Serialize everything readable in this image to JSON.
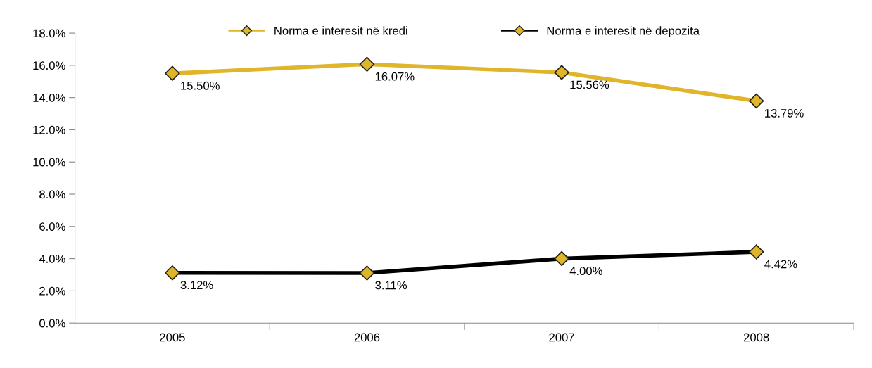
{
  "chart_data": {
    "type": "line",
    "categories": [
      "2005",
      "2006",
      "2007",
      "2008"
    ],
    "series": [
      {
        "name": "Norma e interesit në kredi",
        "color": "#e0b52a",
        "values": [
          15.5,
          16.07,
          15.56,
          13.79
        ],
        "value_labels": [
          "15.50%",
          "16.07%",
          "15.56%",
          "13.79%"
        ]
      },
      {
        "name": "Norma e interesit në depozita",
        "color": "#000000",
        "values": [
          3.12,
          3.11,
          4.0,
          4.42
        ],
        "value_labels": [
          "3.12%",
          "3.11%",
          "4.00%",
          "4.42%"
        ]
      }
    ],
    "ylim": [
      0,
      18
    ],
    "yticks": [
      {
        "value": 0,
        "label": "0.0%"
      },
      {
        "value": 2,
        "label": "2.0%"
      },
      {
        "value": 4,
        "label": "4.0%"
      },
      {
        "value": 6,
        "label": "6.0%"
      },
      {
        "value": 8,
        "label": "8.0%"
      },
      {
        "value": 10,
        "label": "10.0%"
      },
      {
        "value": 12,
        "label": "12.0%"
      },
      {
        "value": 14,
        "label": "14.0%"
      },
      {
        "value": 16,
        "label": "16.0%"
      },
      {
        "value": 18,
        "label": "18.0%"
      }
    ],
    "marker": "diamond",
    "line_style": "solid",
    "legend": "top",
    "grid": false
  }
}
